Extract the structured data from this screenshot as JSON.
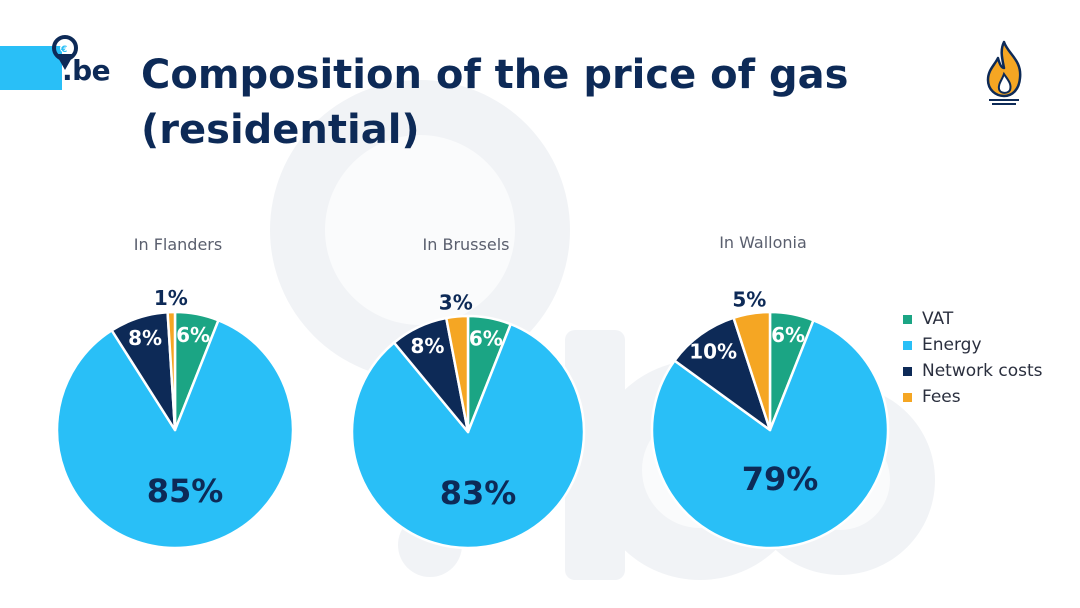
{
  "brand": {
    "logo_text": ".be"
  },
  "header": {
    "title_line1": "Composition of the price of gas",
    "title_line2": "(residential)"
  },
  "colors": {
    "vat": "#1BA584",
    "energy": "#29BFF7",
    "network": "#0D2A57",
    "fees": "#F5A623",
    "text": "#0D2A57"
  },
  "legend": [
    {
      "label": "VAT",
      "color": "#1BA584"
    },
    {
      "label": "Energy",
      "color": "#29BFF7"
    },
    {
      "label": "Network costs",
      "color": "#0D2A57"
    },
    {
      "label": "Fees",
      "color": "#F5A623"
    }
  ],
  "chart_data": [
    {
      "type": "pie",
      "title": "In Flanders",
      "categories": [
        "VAT",
        "Energy",
        "Network costs",
        "Fees"
      ],
      "values": [
        6,
        85,
        8,
        1
      ],
      "labels": [
        "6%",
        "85%",
        "8%",
        "1%"
      ]
    },
    {
      "type": "pie",
      "title": "In Brussels",
      "categories": [
        "VAT",
        "Energy",
        "Network costs",
        "Fees"
      ],
      "values": [
        6,
        83,
        8,
        3
      ],
      "labels": [
        "6%",
        "83%",
        "8%",
        "3%"
      ]
    },
    {
      "type": "pie",
      "title": "In Wallonia",
      "categories": [
        "VAT",
        "Energy",
        "Network costs",
        "Fees"
      ],
      "values": [
        6,
        79,
        10,
        5
      ],
      "labels": [
        "6%",
        "79%",
        "10%",
        "5%"
      ]
    }
  ]
}
